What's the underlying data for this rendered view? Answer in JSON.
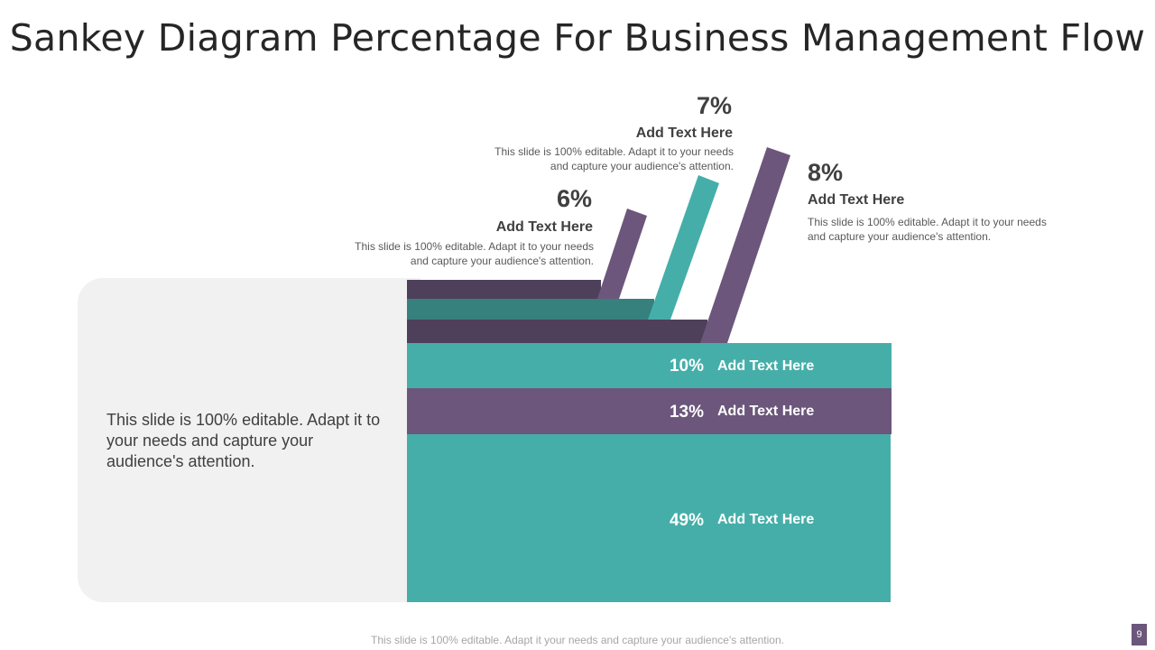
{
  "title": "Sankey Diagram Percentage For Business Management Flow",
  "colors": {
    "teal": "#46aea9",
    "purple": "#6c567b",
    "dark_purple": "#4e3f5b",
    "dark_teal": "#36807d",
    "panel": "#f1f1f1"
  },
  "summary_text": "This slide is 100% editable. Adapt it to your needs and capture your audience's attention.",
  "branches": [
    {
      "percent": "6%",
      "heading": "Add Text Here",
      "description": "This slide is 100% editable. Adapt it to your needs and capture your audience's attention.",
      "value": 6
    },
    {
      "percent": "7%",
      "heading": "Add Text Here",
      "description": "This slide is 100% editable. Adapt it to your needs and capture your audience's attention.",
      "value": 7
    },
    {
      "percent": "8%",
      "heading": "Add Text Here",
      "description": "This slide is 100% editable. Adapt it to your needs and capture your audience's attention.",
      "value": 8
    }
  ],
  "bands": [
    {
      "percent": "10%",
      "label": "Add Text Here",
      "value": 10
    },
    {
      "percent": "13%",
      "label": "Add Text Here",
      "value": 13
    },
    {
      "percent": "49%",
      "label": "Add Text Here",
      "value": 49
    }
  ],
  "footer": "This slide is 100% editable. Adapt it your needs and capture your audience's attention.",
  "page_number": "9"
}
